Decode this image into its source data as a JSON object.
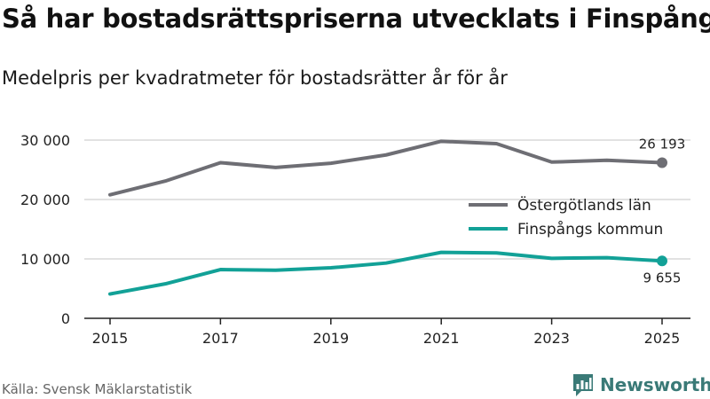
{
  "header": {
    "title": "Så har bostadsrättspriserna utvecklats i Finspång",
    "subtitle": "Medelpris per kvadratmeter för bostadsrätter år för år"
  },
  "footer": {
    "source": "Källa: Svensk Mäklarstatistik",
    "brand": "Newsworthy"
  },
  "colors": {
    "county": "#6e6e74",
    "municipality": "#12a197",
    "grid": "#d9d9d9",
    "axis": "#222222",
    "brand": "#3a7a77"
  },
  "chart_data": {
    "type": "line",
    "title": "Så har bostadsrättspriserna utvecklats i Finspång",
    "subtitle": "Medelpris per kvadratmeter för bostadsrätter år för år",
    "xlabel": "",
    "ylabel": "",
    "x": [
      2015,
      2016,
      2017,
      2018,
      2019,
      2020,
      2021,
      2022,
      2023,
      2024,
      2025
    ],
    "x_ticks": [
      2015,
      2017,
      2019,
      2021,
      2023,
      2025
    ],
    "x_tick_labels": [
      "2015",
      "2017",
      "2019",
      "2021",
      "2023",
      "2025"
    ],
    "xlim": [
      2015,
      2025
    ],
    "ylim": [
      0,
      30000
    ],
    "y_ticks": [
      0,
      10000,
      20000,
      30000
    ],
    "y_tick_labels": [
      "0",
      "10 000",
      "20 000",
      "30 000"
    ],
    "grid": true,
    "legend_position": "right",
    "series": [
      {
        "name": "Östergötlands län",
        "color": "#6e6e74",
        "values": [
          20800,
          23100,
          26200,
          25400,
          26100,
          27500,
          29800,
          29400,
          26300,
          26600,
          26193
        ],
        "end_label": "26 193"
      },
      {
        "name": "Finspångs kommun",
        "color": "#12a197",
        "values": [
          4100,
          5800,
          8200,
          8100,
          8500,
          9300,
          11100,
          11000,
          10100,
          10200,
          9655
        ],
        "end_label": "9 655"
      }
    ]
  }
}
